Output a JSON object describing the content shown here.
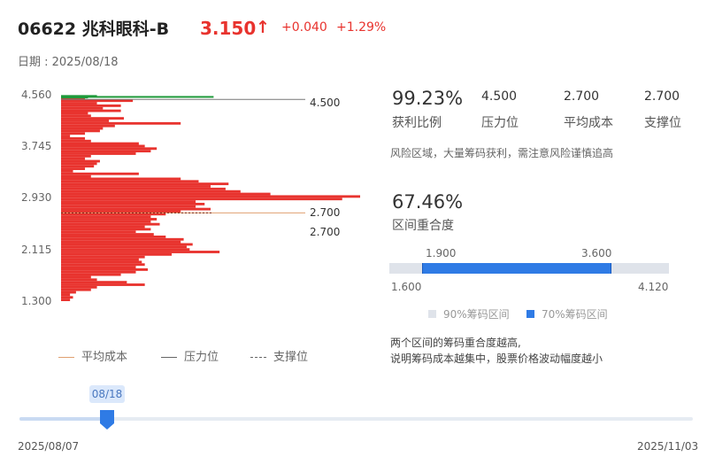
{
  "header": {
    "code_name": "06622 兆科眼科-B",
    "price": "3.150",
    "arrow": "↑",
    "change": "+0.040",
    "change_pct": "+1.29%",
    "date_label": "日期 : 2025/08/18"
  },
  "colors": {
    "up": "#e8332e",
    "profit": "#1f9a3a",
    "range70": "#2f7be5",
    "range90": "#dfe3ea"
  },
  "chart_data": {
    "type": "bar",
    "orientation": "horizontal",
    "ylim": [
      1.3,
      4.56
    ],
    "y_ticks": [
      "4.560",
      "3.745",
      "2.930",
      "2.115",
      "1.300"
    ],
    "bin_top": 4.52,
    "bin_step": 0.04,
    "values": [
      8,
      24,
      12,
      20,
      14,
      20,
      9,
      10,
      21,
      16,
      40,
      18,
      14,
      13,
      8,
      3,
      8,
      10,
      26,
      28,
      32,
      30,
      25,
      10,
      8,
      13,
      12,
      11,
      8,
      4,
      26,
      10,
      40,
      46,
      56,
      50,
      55,
      60,
      70,
      100,
      94,
      45,
      48,
      45,
      50,
      40,
      35,
      30,
      32,
      30,
      33,
      28,
      30,
      25,
      31,
      35,
      41,
      40,
      44,
      42,
      43,
      53,
      37,
      28,
      26,
      27,
      28,
      25,
      29,
      25,
      20,
      10,
      12,
      22,
      28,
      12,
      10,
      5,
      3,
      4,
      3
    ],
    "profit_bins": [
      {
        "price": 4.555,
        "value": 4
      },
      {
        "price": 4.54,
        "value": 17
      },
      {
        "price": 4.53,
        "value": 3
      }
    ],
    "lines": [
      {
        "name": "压力位",
        "price": 4.5,
        "label": "4.500"
      },
      {
        "name": "平均成本",
        "price": 2.7,
        "label": "2.700"
      }
    ],
    "support_label": "2.700"
  },
  "legend": {
    "avg_cost": "平均成本",
    "pressure": "压力位",
    "support": "支撑位"
  },
  "stats": [
    {
      "value": "99.23%",
      "label": "获利比例"
    },
    {
      "value": "4.500",
      "label": "压力位"
    },
    {
      "value": "2.700",
      "label": "平均成本"
    },
    {
      "value": "2.700",
      "label": "支撑位"
    }
  ],
  "risk_note": "风险区域，大量筹码获利，需注意风险谨慎追高",
  "overlap": {
    "value": "67.46%",
    "label": "区间重合度",
    "range70_low": "1.900",
    "range70_high": "3.600",
    "range90_low": "1.600",
    "range90_high": "4.120",
    "legend90": "90%筹码区间",
    "legend70": "70%筹码区间",
    "note1": "两个区间的筹码重合度越高,",
    "note2": "说明筹码成本越集中，股票价格波动幅度越小"
  },
  "slider": {
    "current": "08/18",
    "start": "2025/08/07",
    "end": "2025/11/03",
    "position": 0.13
  }
}
